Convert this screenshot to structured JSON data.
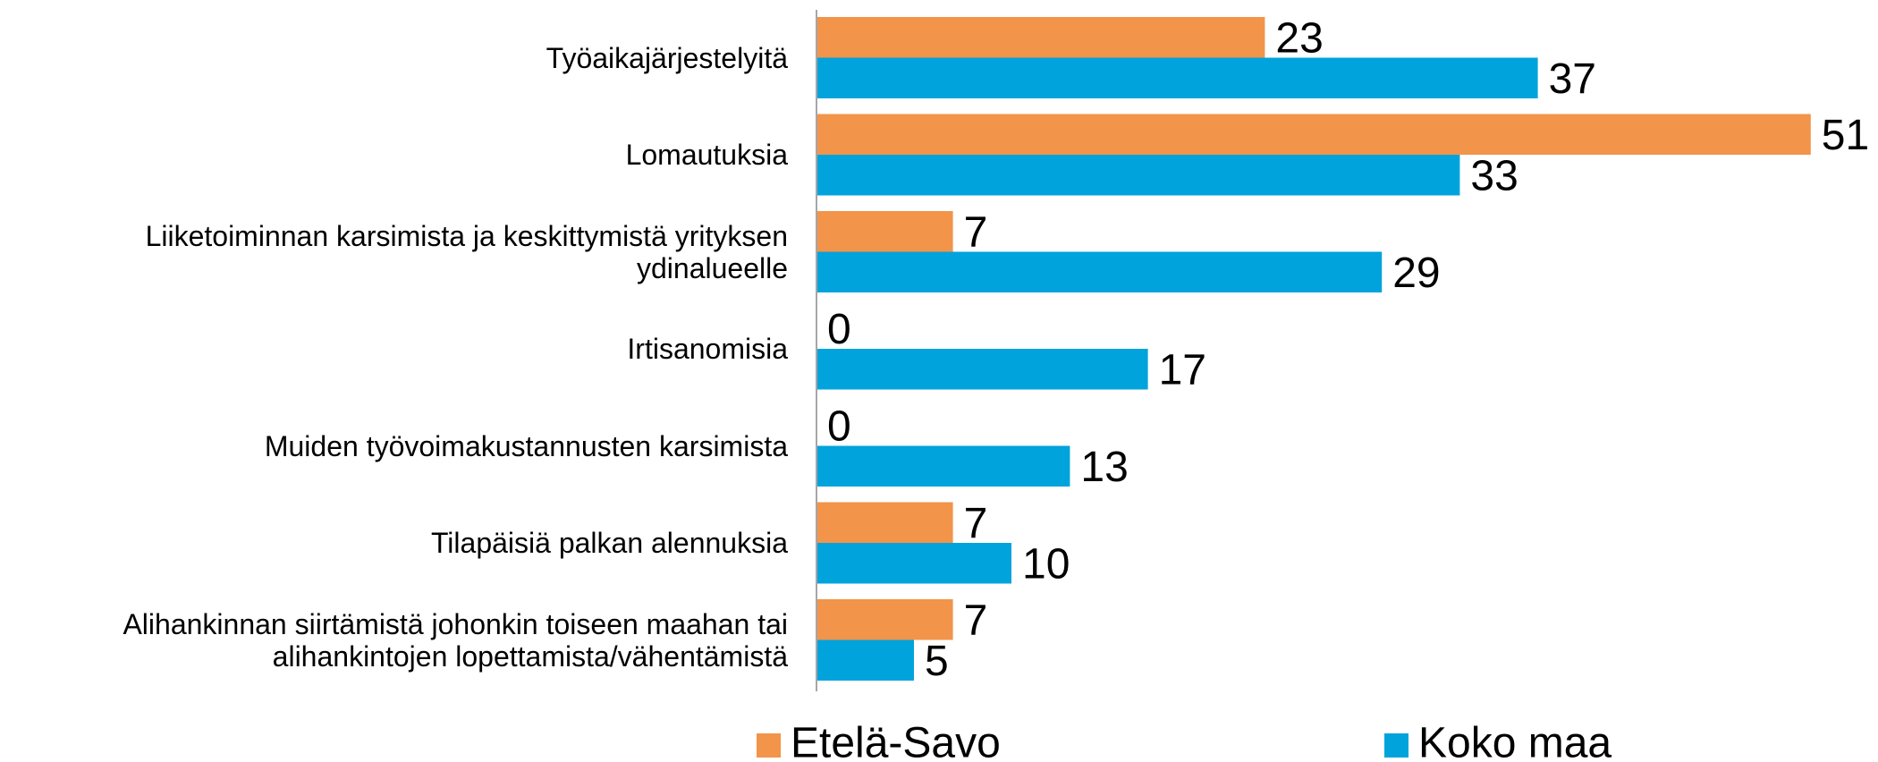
{
  "chart_data": {
    "type": "bar",
    "orientation": "horizontal",
    "categories": [
      "Työaikajärjestelyitä",
      "Lomautuksia",
      "Liiketoiminnan karsimista ja keskittymistä yrityksen\nydinalueelle",
      "Irtisanomisia",
      "Muiden työvoimakustannusten karsimista",
      "Tilapäisiä palkan alennuksia",
      "Alihankinnan siirtämistä johonkin toiseen maahan tai\nalihankintojen lopettamista/vähentämistä"
    ],
    "series": [
      {
        "name": "Etelä-Savo",
        "color": "#f2944a",
        "values": [
          23,
          51,
          7,
          0,
          0,
          7,
          7
        ]
      },
      {
        "name": "Koko maa",
        "color": "#00a3dc",
        "values": [
          37,
          33,
          29,
          17,
          13,
          10,
          5
        ]
      }
    ],
    "legend": "bottom"
  }
}
